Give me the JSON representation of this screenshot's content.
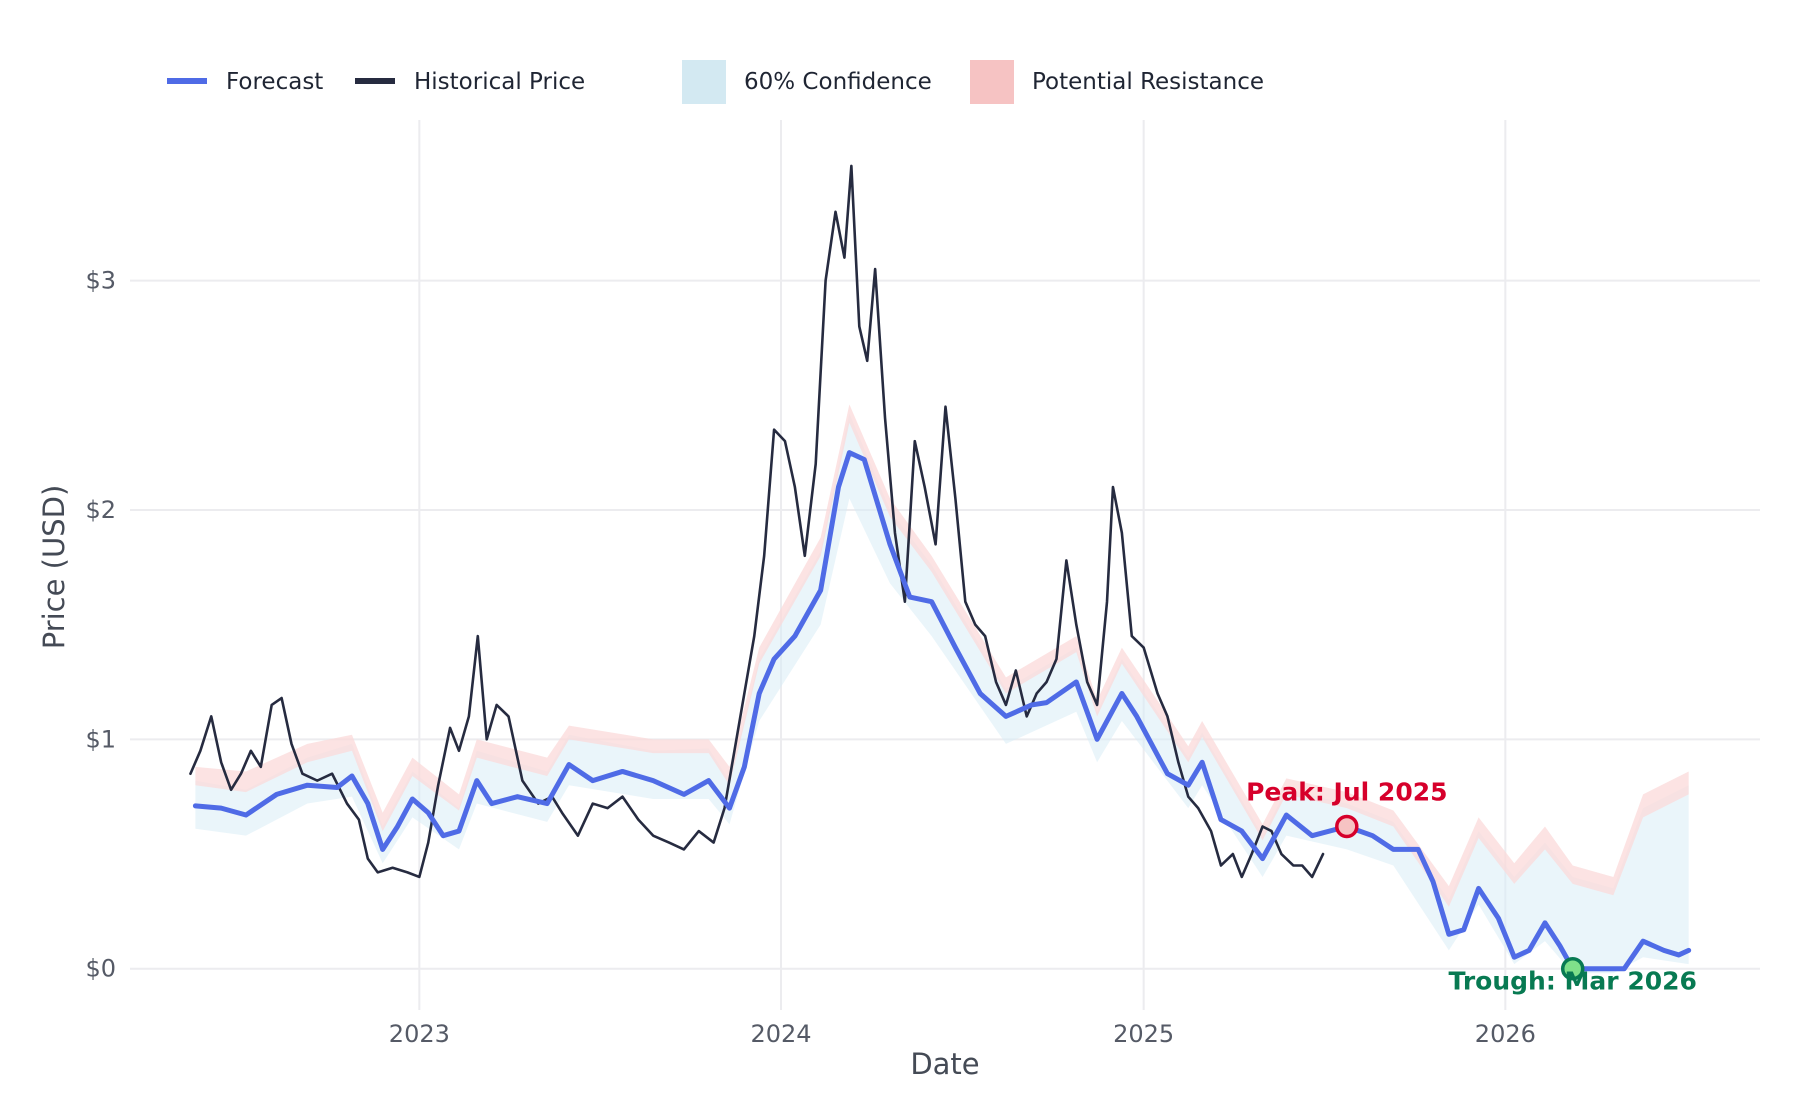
{
  "chart_data": {
    "type": "line",
    "title": "",
    "xlabel": "Date",
    "ylabel": "Price (USD)",
    "x_ticks": [
      "2023",
      "2024",
      "2025",
      "2026"
    ],
    "y_ticks": [
      "$0",
      "$1",
      "$2",
      "$3"
    ],
    "xlim": [
      "2022-03-15",
      "2026-09-15"
    ],
    "ylim": [
      -0.18,
      3.7
    ],
    "grid": true,
    "legend_position": "top",
    "legend": [
      {
        "name": "Forecast",
        "symbol": "line",
        "color": "#4f6be6"
      },
      {
        "name": "Historical Price",
        "symbol": "line",
        "color": "#262b40"
      },
      {
        "name": "60% Confidence",
        "symbol": "patch",
        "color": "#d3e9f2"
      },
      {
        "name": "Potential Resistance",
        "symbol": "patch",
        "color": "#f6c3c3"
      }
    ],
    "series": [
      {
        "name": "Historical Price",
        "color": "#262b40",
        "points": [
          [
            "2022-05-15",
            0.85
          ],
          [
            "2022-05-25",
            0.95
          ],
          [
            "2022-06-05",
            1.1
          ],
          [
            "2022-06-15",
            0.9
          ],
          [
            "2022-06-25",
            0.78
          ],
          [
            "2022-07-05",
            0.85
          ],
          [
            "2022-07-15",
            0.95
          ],
          [
            "2022-07-25",
            0.88
          ],
          [
            "2022-08-05",
            1.15
          ],
          [
            "2022-08-15",
            1.18
          ],
          [
            "2022-08-25",
            0.98
          ],
          [
            "2022-09-05",
            0.85
          ],
          [
            "2022-09-20",
            0.82
          ],
          [
            "2022-10-05",
            0.85
          ],
          [
            "2022-10-20",
            0.72
          ],
          [
            "2022-11-01",
            0.65
          ],
          [
            "2022-11-10",
            0.48
          ],
          [
            "2022-11-20",
            0.42
          ],
          [
            "2022-12-05",
            0.44
          ],
          [
            "2022-12-20",
            0.42
          ],
          [
            "2023-01-01",
            0.4
          ],
          [
            "2023-01-10",
            0.55
          ],
          [
            "2023-01-20",
            0.8
          ],
          [
            "2023-02-01",
            1.05
          ],
          [
            "2023-02-10",
            0.95
          ],
          [
            "2023-02-20",
            1.1
          ],
          [
            "2023-03-01",
            1.45
          ],
          [
            "2023-03-10",
            1.0
          ],
          [
            "2023-03-20",
            1.15
          ],
          [
            "2023-04-01",
            1.1
          ],
          [
            "2023-04-15",
            0.82
          ],
          [
            "2023-05-01",
            0.72
          ],
          [
            "2023-05-15",
            0.75
          ],
          [
            "2023-05-25",
            0.68
          ],
          [
            "2023-06-10",
            0.58
          ],
          [
            "2023-06-25",
            0.72
          ],
          [
            "2023-07-10",
            0.7
          ],
          [
            "2023-07-25",
            0.75
          ],
          [
            "2023-08-10",
            0.65
          ],
          [
            "2023-08-25",
            0.58
          ],
          [
            "2023-09-10",
            0.55
          ],
          [
            "2023-09-25",
            0.52
          ],
          [
            "2023-10-10",
            0.6
          ],
          [
            "2023-10-25",
            0.55
          ],
          [
            "2023-11-05",
            0.7
          ],
          [
            "2023-11-15",
            0.95
          ],
          [
            "2023-11-25",
            1.2
          ],
          [
            "2023-12-05",
            1.45
          ],
          [
            "2023-12-15",
            1.8
          ],
          [
            "2023-12-25",
            2.35
          ],
          [
            "2024-01-05",
            2.3
          ],
          [
            "2024-01-15",
            2.1
          ],
          [
            "2024-01-25",
            1.8
          ],
          [
            "2024-02-05",
            2.2
          ],
          [
            "2024-02-15",
            3.0
          ],
          [
            "2024-02-25",
            3.3
          ],
          [
            "2024-03-05",
            3.1
          ],
          [
            "2024-03-12",
            3.5
          ],
          [
            "2024-03-20",
            2.8
          ],
          [
            "2024-03-28",
            2.65
          ],
          [
            "2024-04-05",
            3.05
          ],
          [
            "2024-04-15",
            2.4
          ],
          [
            "2024-04-25",
            1.9
          ],
          [
            "2024-05-05",
            1.6
          ],
          [
            "2024-05-15",
            2.3
          ],
          [
            "2024-05-25",
            2.1
          ],
          [
            "2024-06-05",
            1.85
          ],
          [
            "2024-06-15",
            2.45
          ],
          [
            "2024-06-25",
            2.05
          ],
          [
            "2024-07-05",
            1.6
          ],
          [
            "2024-07-15",
            1.5
          ],
          [
            "2024-07-25",
            1.45
          ],
          [
            "2024-08-05",
            1.25
          ],
          [
            "2024-08-15",
            1.15
          ],
          [
            "2024-08-25",
            1.3
          ],
          [
            "2024-09-05",
            1.1
          ],
          [
            "2024-09-15",
            1.2
          ],
          [
            "2024-09-25",
            1.25
          ],
          [
            "2024-10-05",
            1.35
          ],
          [
            "2024-10-15",
            1.78
          ],
          [
            "2024-10-25",
            1.5
          ],
          [
            "2024-11-05",
            1.25
          ],
          [
            "2024-11-15",
            1.15
          ],
          [
            "2024-11-25",
            1.6
          ],
          [
            "2024-12-01",
            2.1
          ],
          [
            "2024-12-10",
            1.9
          ],
          [
            "2024-12-20",
            1.45
          ],
          [
            "2025-01-01",
            1.4
          ],
          [
            "2025-01-15",
            1.2
          ],
          [
            "2025-01-25",
            1.1
          ],
          [
            "2025-02-05",
            0.9
          ],
          [
            "2025-02-15",
            0.75
          ],
          [
            "2025-02-25",
            0.7
          ],
          [
            "2025-03-10",
            0.6
          ],
          [
            "2025-03-20",
            0.45
          ],
          [
            "2025-04-01",
            0.5
          ],
          [
            "2025-04-10",
            0.4
          ],
          [
            "2025-04-20",
            0.5
          ],
          [
            "2025-05-01",
            0.62
          ],
          [
            "2025-05-10",
            0.6
          ],
          [
            "2025-05-20",
            0.5
          ],
          [
            "2025-06-01",
            0.45
          ],
          [
            "2025-06-10",
            0.45
          ],
          [
            "2025-06-20",
            0.4
          ],
          [
            "2025-07-01",
            0.5
          ]
        ]
      },
      {
        "name": "Forecast",
        "color": "#4f6be6",
        "points": [
          [
            "2022-05-20",
            0.71
          ],
          [
            "2022-06-15",
            0.7
          ],
          [
            "2022-07-10",
            0.67
          ],
          [
            "2022-08-10",
            0.76
          ],
          [
            "2022-09-10",
            0.8
          ],
          [
            "2022-10-10",
            0.79
          ],
          [
            "2022-10-25",
            0.84
          ],
          [
            "2022-11-10",
            0.72
          ],
          [
            "2022-11-25",
            0.52
          ],
          [
            "2022-12-10",
            0.62
          ],
          [
            "2022-12-25",
            0.74
          ],
          [
            "2023-01-10",
            0.68
          ],
          [
            "2023-01-25",
            0.58
          ],
          [
            "2023-02-10",
            0.6
          ],
          [
            "2023-02-28",
            0.82
          ],
          [
            "2023-03-15",
            0.72
          ],
          [
            "2023-04-10",
            0.75
          ],
          [
            "2023-05-10",
            0.72
          ],
          [
            "2023-06-01",
            0.89
          ],
          [
            "2023-06-25",
            0.82
          ],
          [
            "2023-07-25",
            0.86
          ],
          [
            "2023-08-25",
            0.82
          ],
          [
            "2023-09-25",
            0.76
          ],
          [
            "2023-10-20",
            0.82
          ],
          [
            "2023-11-10",
            0.7
          ],
          [
            "2023-11-25",
            0.88
          ],
          [
            "2023-12-10",
            1.2
          ],
          [
            "2023-12-25",
            1.35
          ],
          [
            "2024-01-15",
            1.45
          ],
          [
            "2024-02-10",
            1.65
          ],
          [
            "2024-02-28",
            2.1
          ],
          [
            "2024-03-10",
            2.25
          ],
          [
            "2024-03-25",
            2.22
          ],
          [
            "2024-04-20",
            1.85
          ],
          [
            "2024-05-10",
            1.62
          ],
          [
            "2024-06-01",
            1.6
          ],
          [
            "2024-06-25",
            1.4
          ],
          [
            "2024-07-20",
            1.2
          ],
          [
            "2024-08-15",
            1.1
          ],
          [
            "2024-09-10",
            1.15
          ],
          [
            "2024-09-25",
            1.16
          ],
          [
            "2024-10-25",
            1.25
          ],
          [
            "2024-11-15",
            1.0
          ],
          [
            "2024-12-10",
            1.2
          ],
          [
            "2024-12-25",
            1.1
          ],
          [
            "2025-01-25",
            0.85
          ],
          [
            "2025-02-15",
            0.8
          ],
          [
            "2025-03-01",
            0.9
          ],
          [
            "2025-03-20",
            0.65
          ],
          [
            "2025-04-10",
            0.6
          ],
          [
            "2025-05-01",
            0.48
          ],
          [
            "2025-05-25",
            0.67
          ],
          [
            "2025-06-20",
            0.58
          ],
          [
            "2025-07-25",
            0.62
          ],
          [
            "2025-08-20",
            0.58
          ],
          [
            "2025-09-10",
            0.52
          ],
          [
            "2025-10-05",
            0.52
          ],
          [
            "2025-10-20",
            0.38
          ],
          [
            "2025-11-05",
            0.15
          ],
          [
            "2025-11-20",
            0.17
          ],
          [
            "2025-12-05",
            0.35
          ],
          [
            "2025-12-25",
            0.22
          ],
          [
            "2026-01-10",
            0.05
          ],
          [
            "2026-01-25",
            0.08
          ],
          [
            "2026-02-10",
            0.2
          ],
          [
            "2026-02-25",
            0.1
          ],
          [
            "2026-03-10",
            0.0
          ],
          [
            "2026-04-10",
            0.0
          ],
          [
            "2026-05-01",
            0.0
          ],
          [
            "2026-05-20",
            0.12
          ],
          [
            "2026-06-10",
            0.08
          ],
          [
            "2026-06-25",
            0.06
          ],
          [
            "2026-07-05",
            0.08
          ]
        ]
      }
    ],
    "bands": [
      {
        "name": "60% Confidence",
        "color": "#d9edf5",
        "points": [
          [
            "2022-05-20",
            0.61,
            0.82
          ],
          [
            "2022-07-10",
            0.58,
            0.78
          ],
          [
            "2022-09-10",
            0.72,
            0.92
          ],
          [
            "2022-10-25",
            0.75,
            0.98
          ],
          [
            "2022-11-25",
            0.46,
            0.62
          ],
          [
            "2022-12-25",
            0.66,
            0.86
          ],
          [
            "2023-02-10",
            0.52,
            0.7
          ],
          [
            "2023-02-28",
            0.72,
            0.95
          ],
          [
            "2023-05-10",
            0.64,
            0.86
          ],
          [
            "2023-06-01",
            0.8,
            1.02
          ],
          [
            "2023-08-25",
            0.74,
            0.95
          ],
          [
            "2023-10-20",
            0.74,
            0.96
          ],
          [
            "2023-11-10",
            0.63,
            0.82
          ],
          [
            "2023-12-10",
            1.08,
            1.35
          ],
          [
            "2024-02-10",
            1.5,
            1.82
          ],
          [
            "2024-03-10",
            2.05,
            2.42
          ],
          [
            "2024-04-20",
            1.68,
            2.0
          ],
          [
            "2024-06-01",
            1.45,
            1.76
          ],
          [
            "2024-08-15",
            0.98,
            1.22
          ],
          [
            "2024-10-25",
            1.12,
            1.4
          ],
          [
            "2024-11-15",
            0.9,
            1.12
          ],
          [
            "2024-12-10",
            1.08,
            1.35
          ],
          [
            "2025-02-15",
            0.7,
            0.92
          ],
          [
            "2025-03-01",
            0.8,
            1.03
          ],
          [
            "2025-05-01",
            0.4,
            0.58
          ],
          [
            "2025-05-25",
            0.58,
            0.78
          ],
          [
            "2025-07-25",
            0.52,
            0.72
          ],
          [
            "2025-09-10",
            0.45,
            0.64
          ],
          [
            "2025-11-05",
            0.08,
            0.3
          ],
          [
            "2025-12-05",
            0.28,
            0.6
          ],
          [
            "2026-01-10",
            0.02,
            0.4
          ],
          [
            "2026-02-10",
            0.12,
            0.55
          ],
          [
            "2026-03-10",
            -0.02,
            0.4
          ],
          [
            "2026-04-20",
            -0.02,
            0.35
          ],
          [
            "2026-05-20",
            0.05,
            0.7
          ],
          [
            "2026-07-05",
            0.02,
            0.8
          ]
        ]
      },
      {
        "name": "Potential Resistance",
        "color": "#fbdada",
        "points": [
          [
            "2022-05-20",
            0.8,
            0.88
          ],
          [
            "2022-07-10",
            0.77,
            0.86
          ],
          [
            "2022-09-10",
            0.9,
            0.98
          ],
          [
            "2022-10-25",
            0.95,
            1.02
          ],
          [
            "2022-11-25",
            0.6,
            0.68
          ],
          [
            "2022-12-25",
            0.84,
            0.92
          ],
          [
            "2023-02-10",
            0.69,
            0.76
          ],
          [
            "2023-02-28",
            0.92,
            1.0
          ],
          [
            "2023-05-10",
            0.84,
            0.92
          ],
          [
            "2023-06-01",
            1.0,
            1.06
          ],
          [
            "2023-08-25",
            0.94,
            1.0
          ],
          [
            "2023-10-20",
            0.94,
            1.0
          ],
          [
            "2023-11-10",
            0.8,
            0.88
          ],
          [
            "2023-12-10",
            1.33,
            1.4
          ],
          [
            "2024-02-10",
            1.8,
            1.88
          ],
          [
            "2024-03-10",
            2.38,
            2.46
          ],
          [
            "2024-04-20",
            1.97,
            2.05
          ],
          [
            "2024-06-01",
            1.73,
            1.8
          ],
          [
            "2024-08-15",
            1.2,
            1.27
          ],
          [
            "2024-10-25",
            1.38,
            1.45
          ],
          [
            "2024-11-15",
            1.1,
            1.17
          ],
          [
            "2024-12-10",
            1.33,
            1.4
          ],
          [
            "2025-02-15",
            0.9,
            0.97
          ],
          [
            "2025-03-01",
            1.01,
            1.08
          ],
          [
            "2025-05-01",
            0.56,
            0.63
          ],
          [
            "2025-05-25",
            0.76,
            0.83
          ],
          [
            "2025-07-25",
            0.7,
            0.77
          ],
          [
            "2025-09-10",
            0.62,
            0.69
          ],
          [
            "2025-11-05",
            0.27,
            0.36
          ],
          [
            "2025-12-05",
            0.57,
            0.66
          ],
          [
            "2026-01-10",
            0.37,
            0.46
          ],
          [
            "2026-02-10",
            0.52,
            0.62
          ],
          [
            "2026-03-10",
            0.37,
            0.45
          ],
          [
            "2026-04-20",
            0.32,
            0.4
          ],
          [
            "2026-05-20",
            0.66,
            0.76
          ],
          [
            "2026-07-05",
            0.76,
            0.86
          ]
        ]
      }
    ],
    "annotations": [
      {
        "label": "Peak: Jul 2025",
        "x": "2025-07-25",
        "y": 0.62,
        "color": "#d6002b",
        "marker_fill": "#f6c3c3",
        "position": "above"
      },
      {
        "label": "Trough: Mar 2026",
        "x": "2026-03-10",
        "y": 0.0,
        "color": "#087a52",
        "marker_fill": "#7fe08a",
        "position": "below"
      }
    ]
  }
}
